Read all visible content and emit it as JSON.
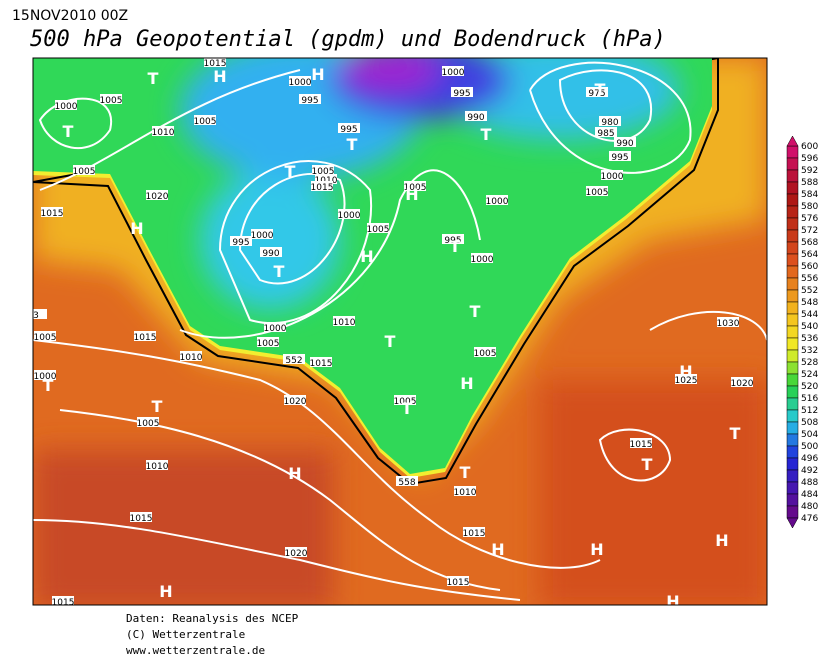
{
  "header": {
    "date": "15NOV2010 00Z",
    "title": "500 hPa Geopotential (gpdm) und Bodendruck (hPa)"
  },
  "map": {
    "labels": [
      "1015",
      "H",
      "T",
      "1000",
      "H",
      "995",
      "1000",
      "995",
      "975",
      "T",
      "1005",
      "1000",
      "T",
      "1005",
      "1010",
      "995",
      "T",
      "990",
      "T",
      "980",
      "985",
      "990",
      "995",
      "1000",
      "1005",
      "1005",
      "1010",
      "1015",
      "T",
      "1005",
      "H",
      "1005",
      "1020",
      "1000",
      "1015",
      "H",
      "1000",
      "1005",
      "1000",
      "995",
      "990",
      "T",
      "995",
      "T",
      "H",
      "1000",
      "T",
      "1010",
      "1000",
      "1005",
      "1015",
      "1005",
      "T",
      "1030",
      "1005",
      "1010",
      "1015",
      "H",
      "1025",
      "1020",
      "1000",
      "T",
      "H",
      "T",
      "1020",
      "1005",
      "T",
      "1005",
      "T",
      "1015",
      "T",
      "1010",
      "H",
      "T",
      "1010",
      "1015",
      "1015",
      "H",
      "H",
      "H",
      "1020",
      "H",
      "1015",
      "H",
      "1015",
      "3",
      "552",
      "558"
    ]
  },
  "colorbar": {
    "levels": [
      600,
      596,
      592,
      588,
      584,
      580,
      576,
      572,
      568,
      564,
      560,
      556,
      552,
      548,
      544,
      540,
      536,
      532,
      528,
      524,
      520,
      516,
      512,
      508,
      504,
      500,
      496,
      492,
      488,
      484,
      480,
      476
    ]
  },
  "footer": {
    "lines": [
      "Daten: Reanalysis des NCEP",
      "(C) Wetterzentrale",
      "www.wetterzentrale.de"
    ]
  }
}
